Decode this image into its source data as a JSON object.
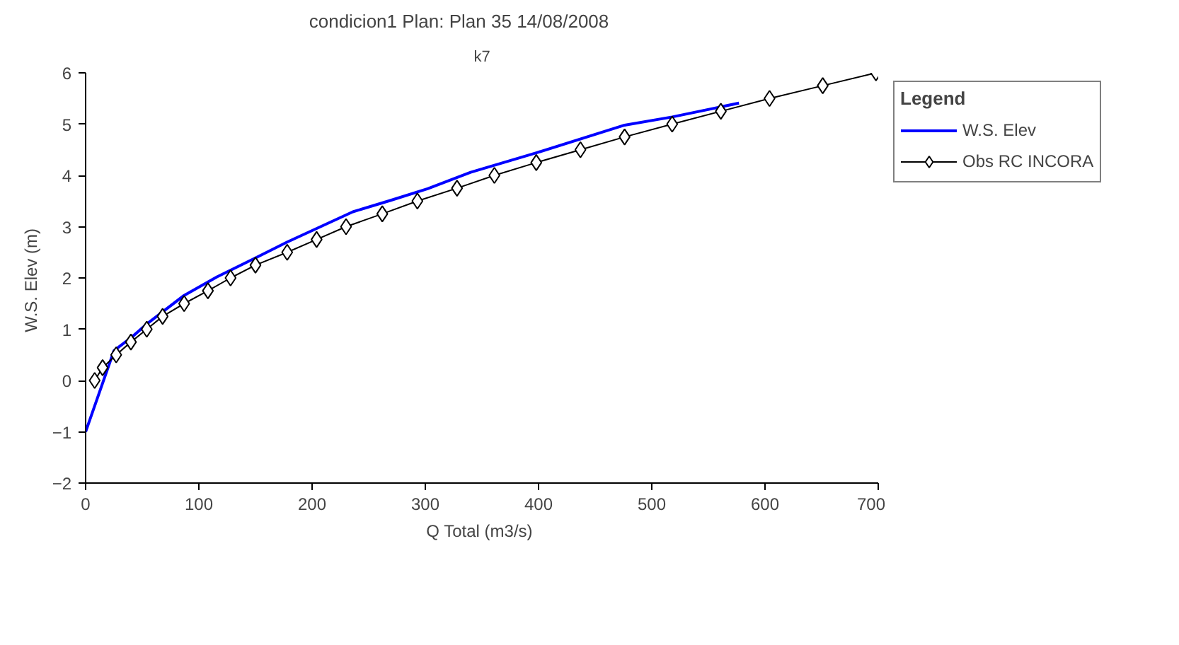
{
  "chart_data": {
    "type": "line",
    "title": "condicion1      Plan: Plan 35     14/08/2008",
    "subtitle": "k7",
    "xlabel": "Q Total  (m3/s)",
    "ylabel": "W.S. Elev  (m)",
    "legend_title": "Legend",
    "xlim": [
      0,
      700
    ],
    "xticks": [
      0,
      100,
      200,
      300,
      400,
      500,
      600,
      700
    ],
    "ylim": [
      -2,
      6
    ],
    "yticks": [
      -2,
      -1,
      0,
      1,
      2,
      3,
      4,
      5,
      6
    ],
    "grid": false,
    "legend": "right",
    "series": [
      {
        "name": "W.S. Elev",
        "color": "#0000ff",
        "marker": "none",
        "x": [
          0,
          25,
          41,
          55,
          87,
          116,
          149,
          178,
          236,
          269,
          302,
          340,
          398,
          476,
          518,
          577
        ],
        "values": [
          -1,
          0.58,
          0.85,
          1.12,
          1.66,
          2.02,
          2.38,
          2.7,
          3.29,
          3.51,
          3.74,
          4.06,
          4.44,
          4.98,
          5.14,
          5.41
        ]
      },
      {
        "name": "Obs RC INCORA",
        "color": "#000000",
        "marker": "diamond",
        "x": [
          8,
          15,
          27,
          40,
          54,
          68,
          87,
          108,
          128,
          150,
          178,
          204,
          230,
          262,
          293,
          328,
          361,
          398,
          437,
          476,
          518,
          561,
          604,
          651,
          698
        ],
        "values": [
          0,
          0.25,
          0.5,
          0.75,
          1,
          1.25,
          1.5,
          1.75,
          2,
          2.25,
          2.5,
          2.75,
          3,
          3.25,
          3.5,
          3.75,
          4,
          4.25,
          4.5,
          4.75,
          5,
          5.25,
          5.5,
          5.75,
          6
        ]
      }
    ]
  }
}
